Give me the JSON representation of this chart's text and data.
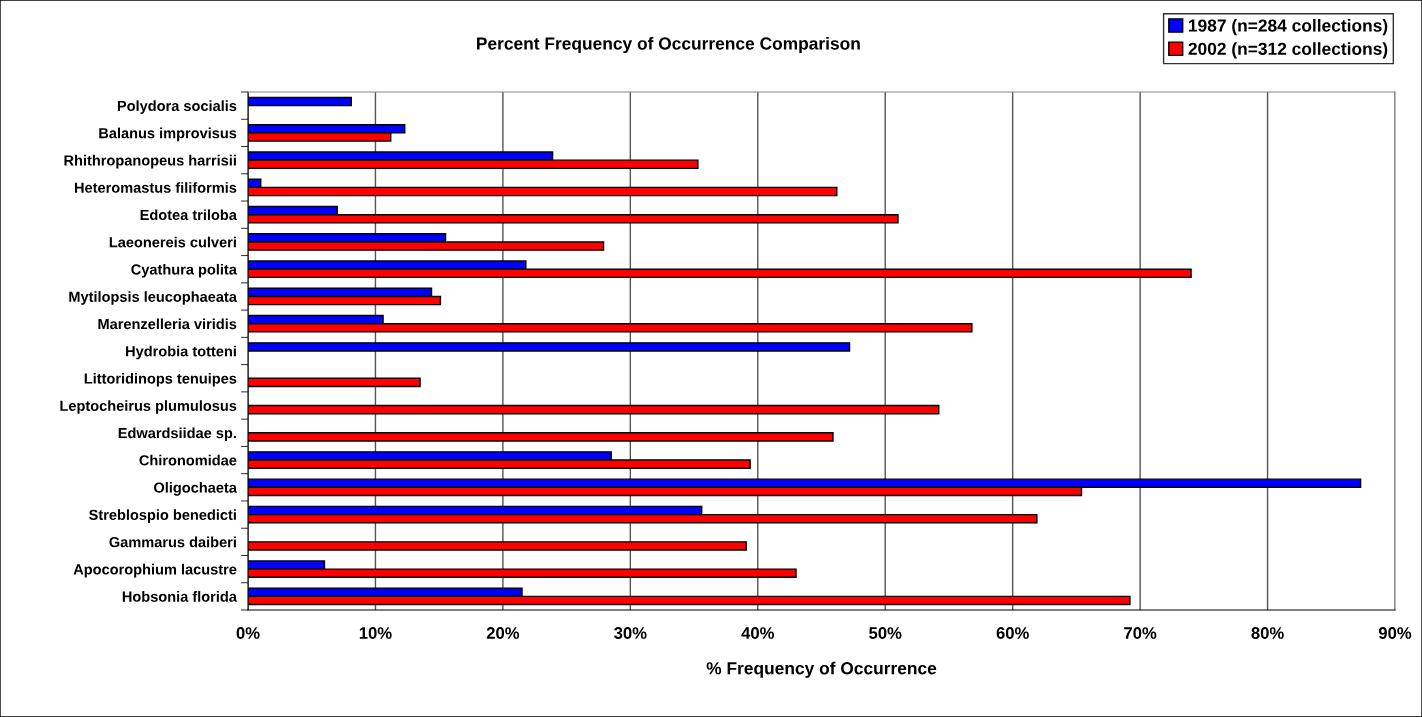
{
  "chart_data": {
    "type": "bar",
    "orientation": "horizontal",
    "title": "Percent Frequency of Occurrence Comparison",
    "xlabel": "% Frequency of Occurrence",
    "categories": [
      "Polydora socialis",
      "Balanus improvisus",
      "Rhithropanopeus harrisii",
      "Heteromastus filiformis",
      "Edotea triloba",
      "Laeonereis culveri",
      "Cyathura polita",
      "Mytilopsis leucophaeata",
      "Marenzelleria viridis",
      "Hydrobia totteni",
      "Littoridinops tenuipes",
      "Leptocheirus plumulosus",
      "Edwardsiidae sp.",
      "Chironomidae",
      "Oligochaeta",
      "Streblospio benedicti",
      "Gammarus daiberi",
      "Apocorophium lacustre",
      "Hobsonia florida"
    ],
    "series": [
      {
        "name": "1987 (n=284 collections)",
        "color": "#0000ff",
        "values": [
          8.1,
          12.3,
          23.9,
          1.0,
          7.0,
          15.5,
          21.8,
          14.4,
          10.6,
          47.2,
          null,
          null,
          null,
          28.5,
          87.3,
          35.6,
          null,
          6.0,
          21.5
        ]
      },
      {
        "name": "2002 (n=312 collections)",
        "color": "#ff0000",
        "values": [
          null,
          11.2,
          35.3,
          46.2,
          51.0,
          27.9,
          74.0,
          15.1,
          56.8,
          null,
          13.5,
          54.2,
          45.9,
          39.4,
          65.4,
          61.9,
          39.1,
          43.0,
          69.2
        ]
      }
    ],
    "xlim": [
      0,
      90
    ],
    "xticks": [
      {
        "value": 0,
        "label": "0%"
      },
      {
        "value": 10,
        "label": "10%"
      },
      {
        "value": 20,
        "label": "20%"
      },
      {
        "value": 30,
        "label": "30%"
      },
      {
        "value": 40,
        "label": "40%"
      },
      {
        "value": 50,
        "label": "50%"
      },
      {
        "value": 60,
        "label": "60%"
      },
      {
        "value": 70,
        "label": "70%"
      },
      {
        "value": 80,
        "label": "80%"
      },
      {
        "value": 90,
        "label": "90%"
      }
    ],
    "grid": "x",
    "legend": "top right"
  }
}
